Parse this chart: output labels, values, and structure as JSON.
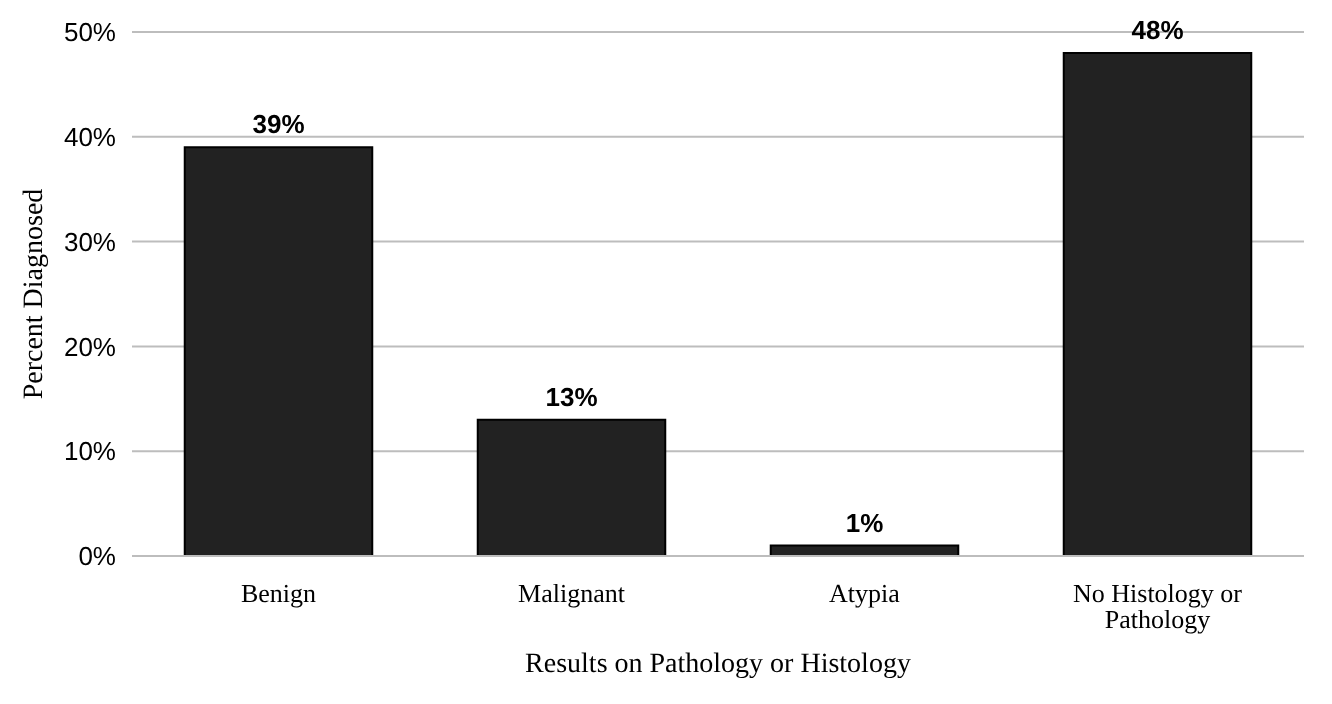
{
  "chart_data": {
    "type": "bar",
    "xlabel": "Results on Pathology or Histology",
    "ylabel": "Percent Diagnosed",
    "categories": [
      "Benign",
      "Malignant",
      "Atypia",
      "No Histology or Pathology"
    ],
    "values": [
      39,
      13,
      1,
      48
    ],
    "value_labels": [
      "39%",
      "13%",
      "1%",
      "48%"
    ],
    "color": "#222222",
    "ylim": [
      0,
      50
    ],
    "yticks": [
      {
        "value": 0,
        "label": "0%"
      },
      {
        "value": 10,
        "label": "10%"
      },
      {
        "value": 20,
        "label": "20%"
      },
      {
        "value": 30,
        "label": "30%"
      },
      {
        "value": 40,
        "label": "40%"
      },
      {
        "value": 50,
        "label": "50%"
      }
    ],
    "grid": "y"
  }
}
